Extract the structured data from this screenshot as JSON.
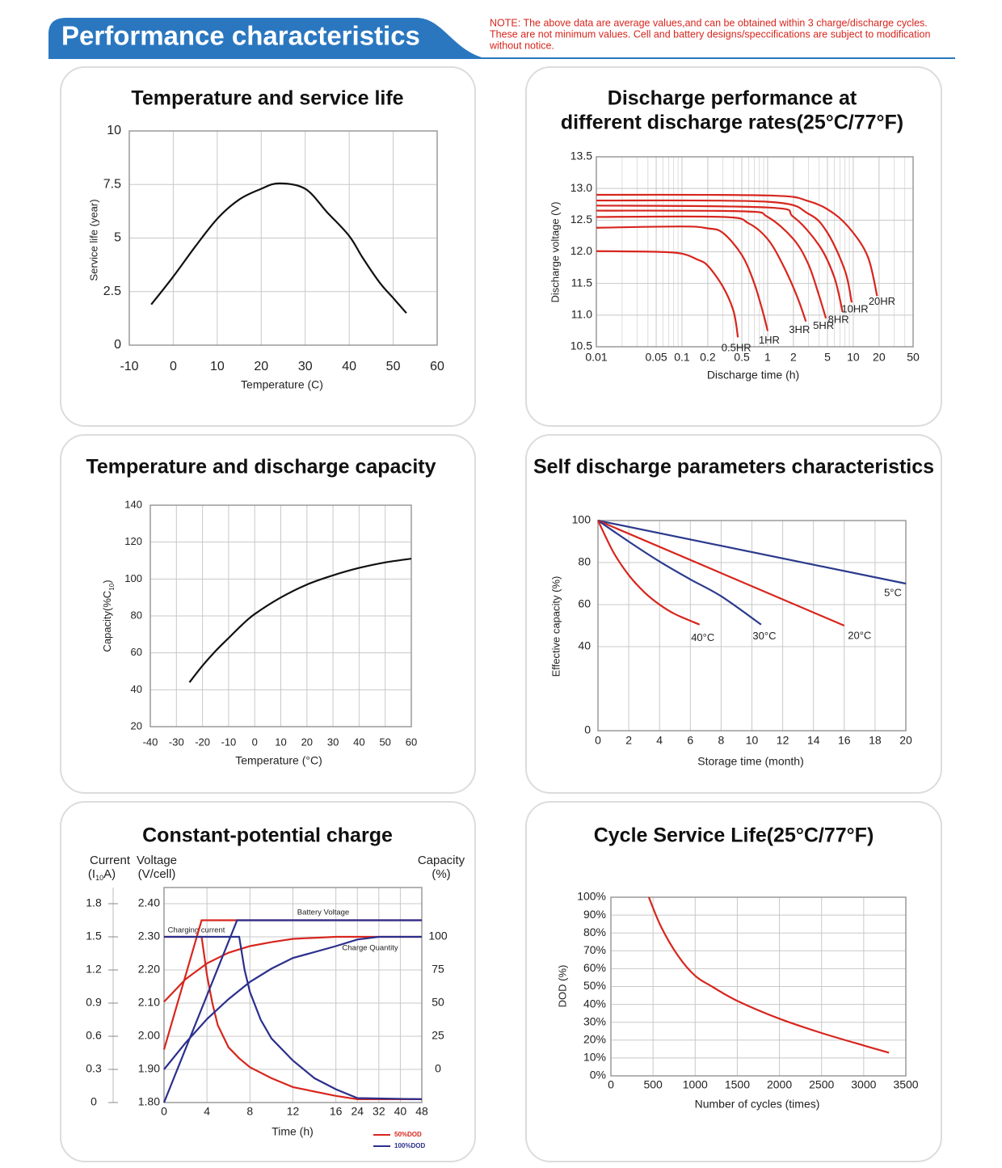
{
  "header": {
    "title": "Performance characteristics",
    "note": [
      "NOTE: The above data are average values,and can be obtained within 3 charge/discharge cycles.",
      "These are not minimum values. Cell and battery designs/speccifications are subject to modification",
      "without notice."
    ]
  },
  "chart_data": [
    {
      "type": "line",
      "title": [
        "Temperature and service life"
      ],
      "x_label": "Temperature (C)",
      "y_label": "Service life (year)",
      "x": [
        -5,
        0,
        5,
        10,
        15,
        20,
        24,
        30,
        35,
        40,
        43,
        47,
        50,
        53
      ],
      "values": [
        1.9,
        3.2,
        4.6,
        5.9,
        6.8,
        7.3,
        7.55,
        7.3,
        6.2,
        5.1,
        4.1,
        2.9,
        2.2,
        1.5
      ],
      "color": "#111111",
      "xlim": [
        -10,
        60
      ],
      "ylim": [
        0,
        10
      ],
      "xticks": [
        -10,
        0,
        10,
        20,
        30,
        40,
        50,
        60
      ],
      "yticks": [
        0,
        2.5,
        5,
        7.5,
        10
      ],
      "grid": true
    },
    {
      "type": "line",
      "title": [
        "Discharge performance at",
        "different discharge rates(25°C/77°F)"
      ],
      "x_label": "Discharge time (h)",
      "y_label": "Discharge voltage (V)",
      "x_scale": "log",
      "minor_grid": true,
      "xlim": [
        0.01,
        50
      ],
      "ylim": [
        10.5,
        13.5
      ],
      "xticks": [
        0.01,
        0.05,
        0.1,
        0.2,
        0.5,
        1,
        2,
        5,
        10,
        20,
        50
      ],
      "yticks": [
        10.5,
        {
          "value": 11,
          "label": "11.0"
        },
        11.5,
        {
          "value": 12,
          "label": "12.0"
        },
        12.5,
        {
          "value": 13,
          "label": "13.0"
        },
        13.5
      ],
      "grid": true,
      "series": [
        {
          "name": "0.5HR",
          "color": "#d7261e",
          "x": [
            0.01,
            0.05,
            0.1,
            0.15,
            0.2,
            0.3,
            0.4,
            0.45
          ],
          "values": [
            12.01,
            12.0,
            11.97,
            11.88,
            11.78,
            11.45,
            11.06,
            10.65
          ]
        },
        {
          "name": "1HR",
          "color": "#d7261e",
          "x": [
            0.01,
            0.1,
            0.2,
            0.3,
            0.5,
            0.7,
            0.9,
            1.0
          ],
          "values": [
            12.38,
            12.4,
            12.37,
            12.3,
            11.95,
            11.5,
            11.0,
            10.75
          ]
        },
        {
          "name": "3HR",
          "color": "#d7261e",
          "x": [
            0.01,
            0.3,
            0.6,
            1.0,
            1.5,
            2.2,
            2.8
          ],
          "values": [
            12.55,
            12.55,
            12.45,
            12.2,
            11.8,
            11.3,
            10.9
          ]
        },
        {
          "name": "5HR",
          "color": "#d7261e",
          "x": [
            0.01,
            0.5,
            1,
            2,
            3,
            4,
            4.8
          ],
          "values": [
            12.65,
            12.64,
            12.55,
            12.2,
            11.8,
            11.3,
            10.95
          ]
        },
        {
          "name": "8HR",
          "color": "#d7261e",
          "x": [
            0.01,
            1,
            2,
            4,
            6,
            7.5
          ],
          "values": [
            12.73,
            12.7,
            12.55,
            12.1,
            11.6,
            11.05
          ]
        },
        {
          "name": "10HR",
          "color": "#d7261e",
          "x": [
            0.01,
            1,
            3,
            5,
            8,
            9.6
          ],
          "values": [
            12.81,
            12.79,
            12.6,
            12.3,
            11.7,
            11.2
          ]
        },
        {
          "name": "20HR",
          "color": "#d7261e",
          "x": [
            0.01,
            1,
            3,
            6,
            10,
            15,
            19
          ],
          "values": [
            12.9,
            12.89,
            12.8,
            12.6,
            12.3,
            11.9,
            11.3
          ]
        }
      ]
    },
    {
      "type": "line",
      "title": [
        "Temperature and discharge capacity"
      ],
      "x_label": "Temperature (°C)",
      "y_label": "Capacity(%C",
      "y_label_sub": "10",
      "y_label_end": ")",
      "x": [
        -25,
        -20,
        -15,
        -10,
        -5,
        0,
        10,
        20,
        30,
        40,
        50,
        60
      ],
      "values": [
        44,
        53,
        61,
        68,
        75,
        81,
        90,
        97,
        102,
        106,
        109,
        111
      ],
      "color": "#111111",
      "xlim": [
        -40,
        60
      ],
      "ylim": [
        20,
        140
      ],
      "xticks": [
        -40,
        -30,
        -20,
        -10,
        0,
        10,
        20,
        30,
        40,
        50,
        60
      ],
      "yticks": [
        20,
        40,
        60,
        80,
        100,
        120,
        140
      ],
      "grid": true
    },
    {
      "type": "line",
      "title": [
        "Self discharge parameters characteristics"
      ],
      "x_label": "Storage time (month)",
      "y_label": "Effective capacity (%)",
      "xlim": [
        0,
        20
      ],
      "ylim": [
        0,
        100
      ],
      "xticks": [
        0,
        2,
        4,
        6,
        8,
        10,
        12,
        14,
        16,
        18,
        20
      ],
      "yticks": [
        0,
        40,
        60,
        80,
        100
      ],
      "grid": true,
      "series": [
        {
          "name": "5°C",
          "color": "#2b3a8c",
          "x": [
            0,
            20
          ],
          "values": [
            100,
            70
          ]
        },
        {
          "name": "20°C",
          "color": "#d7261e",
          "x": [
            0,
            16
          ],
          "values": [
            100,
            50
          ]
        },
        {
          "name": "30°C",
          "color": "#2b3a8c",
          "x": [
            0,
            2,
            4,
            6,
            8,
            10.6
          ],
          "values": [
            100,
            90,
            80.5,
            72,
            64,
            50.5
          ]
        },
        {
          "name": "40°C",
          "color": "#d7261e",
          "x": [
            0,
            1,
            2,
            3,
            4,
            5,
            6.6
          ],
          "values": [
            100,
            85,
            74,
            66,
            60,
            55.5,
            50.5
          ]
        }
      ]
    },
    {
      "type": "line",
      "title": [
        "Constant-potential charge"
      ],
      "x_label": "Time (h)",
      "y_label": [
        "Current",
        "(I",
        "10",
        "A)"
      ],
      "y2_label": [
        "Voltage",
        "(V/cell)"
      ],
      "y3_label": [
        "Capacity",
        "(%)"
      ],
      "xlim": [
        0,
        48
      ],
      "xticks": [
        0,
        4,
        8,
        12,
        16,
        24,
        32,
        40,
        48
      ],
      "ylim": [
        0,
        1.8
      ],
      "yticks": [
        0,
        0.3,
        0.6,
        0.9,
        1.2,
        1.5,
        1.8
      ],
      "y2lim": [
        1.8,
        2.4
      ],
      "y2ticks": [
        {
          "value": 1.8,
          "label": "1.80"
        },
        {
          "value": 1.9,
          "label": "1.90"
        },
        {
          "value": 2.0,
          "label": "2.00"
        },
        {
          "value": 2.1,
          "label": "2.10"
        },
        {
          "value": 2.2,
          "label": "2.20"
        },
        {
          "value": 2.3,
          "label": "2.30"
        },
        {
          "value": 2.4,
          "label": "2.40"
        }
      ],
      "y3lim": [
        -25,
        125
      ],
      "y3ticks": [
        0,
        25,
        50,
        75,
        100
      ],
      "grid": true,
      "annotations": [
        "Battery Voltage",
        "Charging current",
        "Charge Quantity"
      ],
      "legend": [
        {
          "name": "50%DOD",
          "color": "#d7261e"
        },
        {
          "name": "100%DOD",
          "color": "#2b2f8c"
        }
      ],
      "series": [
        {
          "color": "#d7261e",
          "axis": "y2",
          "x": [
            0,
            3.5,
            48
          ],
          "values": [
            1.96,
            2.35,
            2.35
          ]
        },
        {
          "color": "#d7261e",
          "axis": "y",
          "x": [
            0,
            3.5,
            4,
            4.5,
            5,
            6,
            7,
            8,
            10,
            12,
            16,
            24,
            48
          ],
          "values": [
            1.5,
            1.5,
            1.15,
            0.9,
            0.7,
            0.5,
            0.4,
            0.32,
            0.22,
            0.14,
            0.06,
            0.03,
            0.03
          ]
        },
        {
          "color": "#d7261e",
          "axis": "y3",
          "x": [
            0,
            2,
            4,
            6,
            8,
            10,
            12,
            16,
            48
          ],
          "values": [
            51,
            68,
            80,
            88,
            93,
            96,
            98.5,
            100,
            100
          ]
        },
        {
          "color": "#2b2f8c",
          "axis": "y2",
          "x": [
            0,
            6.8,
            48
          ],
          "values": [
            1.8,
            2.35,
            2.35
          ]
        },
        {
          "color": "#2b2f8c",
          "axis": "y",
          "x": [
            0,
            7,
            7.5,
            8,
            9,
            10,
            12,
            14,
            16,
            24,
            48
          ],
          "values": [
            1.5,
            1.5,
            1.2,
            1.0,
            0.75,
            0.58,
            0.38,
            0.22,
            0.12,
            0.04,
            0.03
          ]
        },
        {
          "color": "#2b2f8c",
          "axis": "y3",
          "x": [
            0,
            2,
            4,
            6,
            8,
            10,
            12,
            16,
            24,
            32,
            48
          ],
          "values": [
            0,
            20,
            38,
            53,
            66,
            76,
            84,
            93,
            98,
            100,
            100
          ]
        }
      ]
    },
    {
      "type": "line",
      "title": [
        "Cycle Service Life(25°C/77°F)"
      ],
      "x_label": "Number of cycles (times)",
      "y_label": "DOD (%)",
      "x": [
        450,
        600,
        800,
        1000,
        1200,
        1500,
        2000,
        2500,
        3000,
        3300
      ],
      "values": [
        100,
        83,
        67,
        56,
        50,
        42,
        32,
        24,
        17,
        13
      ],
      "color": "#d7261e",
      "xlim": [
        0,
        3500
      ],
      "ylim": [
        0,
        100
      ],
      "xticks": [
        0,
        500,
        1000,
        1500,
        2000,
        2500,
        3000,
        3500
      ],
      "yticks": [
        {
          "value": 0,
          "label": "0%"
        },
        {
          "value": 10,
          "label": "10%"
        },
        {
          "value": 20,
          "label": "20%"
        },
        {
          "value": 30,
          "label": "30%"
        },
        {
          "value": 40,
          "label": "40%"
        },
        {
          "value": 50,
          "label": "50%"
        },
        {
          "value": 60,
          "label": "60%"
        },
        {
          "value": 70,
          "label": "70%"
        },
        {
          "value": 80,
          "label": "80%"
        },
        {
          "value": 90,
          "label": "90%"
        },
        {
          "value": 100,
          "label": "100%"
        }
      ],
      "grid": true
    }
  ]
}
